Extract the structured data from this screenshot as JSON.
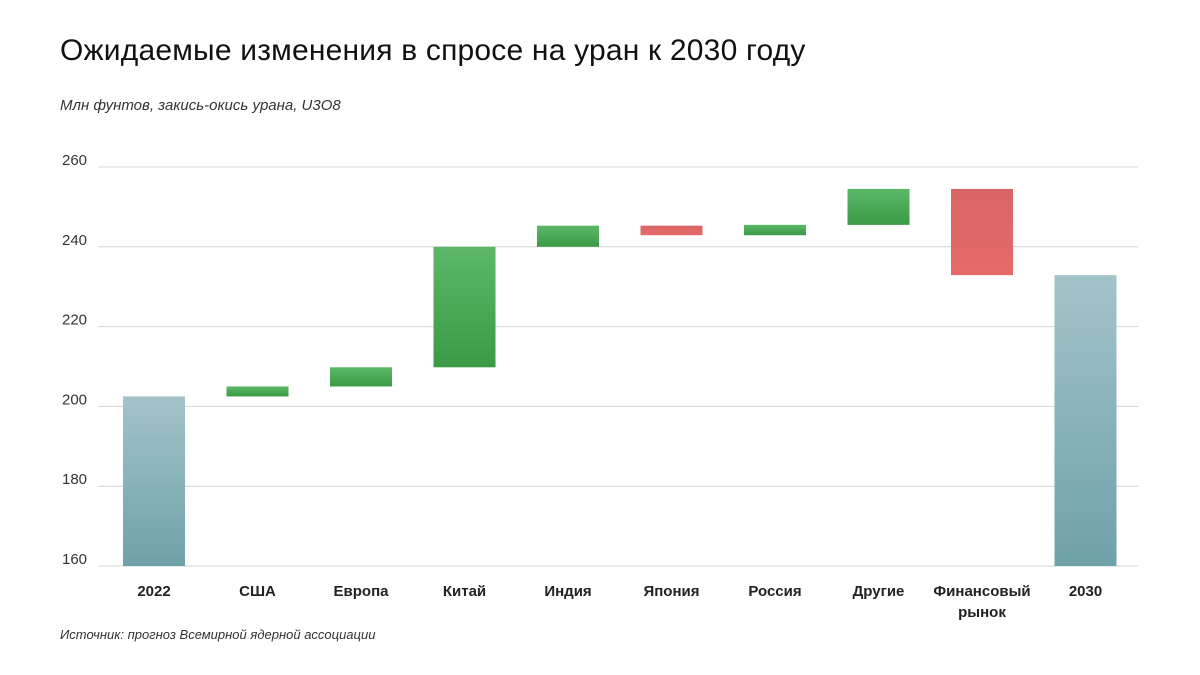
{
  "title": "Ожидаемые изменения в спросе на уран к 2030 году",
  "subtitle": "Млн фунтов, закись-окись урана, U3O8",
  "source": "Источник: прогноз Всемирной ядерной ассоциации",
  "colors": {
    "total": "#6fa1aa",
    "total_light": "#a3c3c9",
    "increase": "#3a9a45",
    "increase_light": "#5cb868",
    "decrease": "#e66a6a",
    "decrease_light": "#d86565",
    "grid": "#d4d4d4"
  },
  "chart_data": {
    "type": "bar",
    "subtype": "waterfall",
    "ylim": [
      160,
      260
    ],
    "yticks": [
      160,
      180,
      200,
      220,
      240,
      260
    ],
    "grid": true,
    "categories": [
      {
        "label": "2022",
        "lines": [
          "2022"
        ],
        "kind": "total",
        "start": 160,
        "end": 202.5
      },
      {
        "label": "США",
        "lines": [
          "США"
        ],
        "kind": "increase",
        "start": 202.5,
        "end": 205
      },
      {
        "label": "Европа",
        "lines": [
          "Европа"
        ],
        "kind": "increase",
        "start": 205,
        "end": 209.8
      },
      {
        "label": "Китай",
        "lines": [
          "Китай"
        ],
        "kind": "increase",
        "start": 209.8,
        "end": 240
      },
      {
        "label": "Индия",
        "lines": [
          "Индия"
        ],
        "kind": "increase",
        "start": 240,
        "end": 245.3
      },
      {
        "label": "Япония",
        "lines": [
          "Япония"
        ],
        "kind": "decrease",
        "start": 245.3,
        "end": 242.9
      },
      {
        "label": "Россия",
        "lines": [
          "Россия"
        ],
        "kind": "increase",
        "start": 242.9,
        "end": 245.5
      },
      {
        "label": "Другие",
        "lines": [
          "Другие"
        ],
        "kind": "increase",
        "start": 245.5,
        "end": 254.5
      },
      {
        "label": "Финансовый рынок",
        "lines": [
          "Финансовый",
          "рынок"
        ],
        "kind": "decrease",
        "start": 254.5,
        "end": 232.9
      },
      {
        "label": "2030",
        "lines": [
          "2030"
        ],
        "kind": "total",
        "start": 160,
        "end": 232.9
      }
    ]
  }
}
